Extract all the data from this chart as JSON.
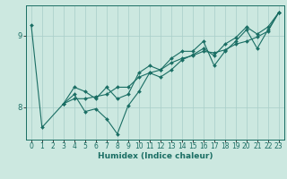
{
  "xlabel": "Humidex (Indice chaleur)",
  "bg_color": "#cce8e0",
  "line_color": "#1a6e64",
  "grid_color": "#a8cec8",
  "xlim": [
    -0.5,
    23.5
  ],
  "ylim": [
    7.55,
    9.42
  ],
  "yticks": [
    8,
    9
  ],
  "xticks": [
    0,
    1,
    2,
    3,
    4,
    5,
    6,
    7,
    8,
    9,
    10,
    11,
    12,
    13,
    14,
    15,
    16,
    17,
    18,
    19,
    20,
    21,
    22,
    23
  ],
  "line1_x": [
    0,
    1,
    3,
    4,
    5,
    6,
    7,
    8,
    9,
    10,
    11,
    12,
    13,
    14,
    15,
    16,
    17,
    18,
    19,
    20,
    21,
    22,
    23
  ],
  "line1_y": [
    9.15,
    7.72,
    8.05,
    8.18,
    7.94,
    7.98,
    7.84,
    7.63,
    8.02,
    8.22,
    8.48,
    8.42,
    8.52,
    8.66,
    8.73,
    8.82,
    8.72,
    8.88,
    8.97,
    9.12,
    9.02,
    9.12,
    9.32
  ],
  "line2_x": [
    3,
    4,
    5,
    6,
    7,
    8,
    9,
    10,
    11,
    12,
    13,
    14,
    15,
    16,
    17,
    18,
    19,
    20,
    21,
    22,
    23
  ],
  "line2_y": [
    8.05,
    8.28,
    8.22,
    8.12,
    8.28,
    8.12,
    8.18,
    8.48,
    8.58,
    8.52,
    8.68,
    8.78,
    8.78,
    8.92,
    8.58,
    8.78,
    8.92,
    9.08,
    8.82,
    9.08,
    9.32
  ],
  "line3_x": [
    3,
    4,
    5,
    6,
    7,
    8,
    9,
    10,
    11,
    12,
    13,
    14,
    15,
    16,
    17,
    18,
    19,
    20,
    21,
    22,
    23
  ],
  "line3_y": [
    8.05,
    8.12,
    8.12,
    8.15,
    8.18,
    8.28,
    8.28,
    8.42,
    8.48,
    8.52,
    8.62,
    8.68,
    8.72,
    8.78,
    8.76,
    8.8,
    8.88,
    8.92,
    8.98,
    9.06,
    9.32
  ],
  "marker": "D",
  "markersize": 2.0,
  "linewidth": 0.8,
  "tick_fontsize": 5.5,
  "xlabel_fontsize": 6.5
}
